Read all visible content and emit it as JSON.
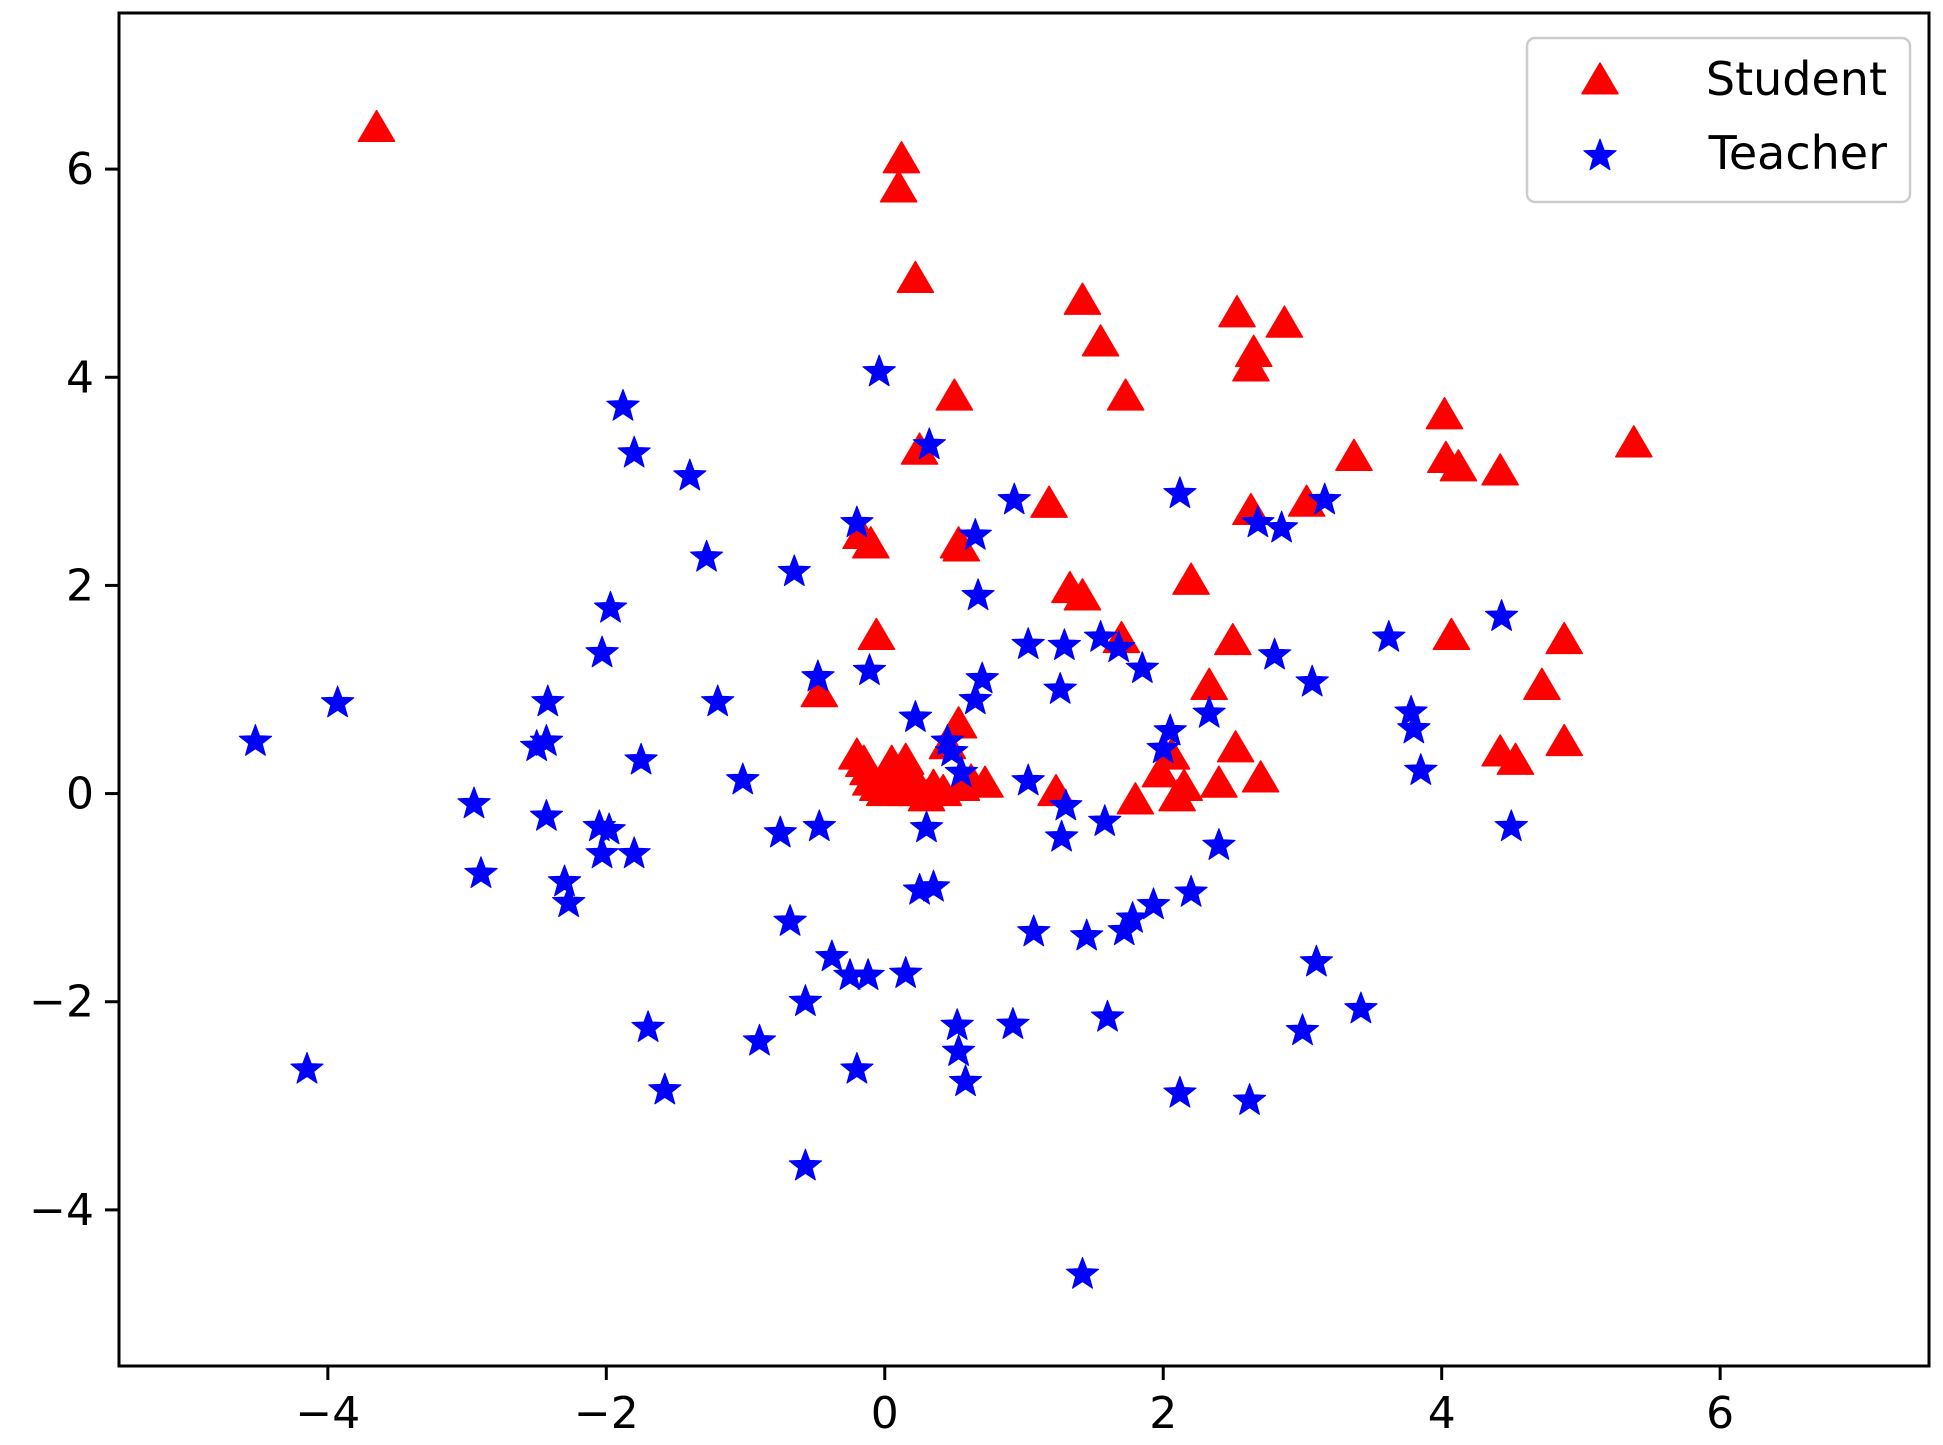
{
  "chart_data": {
    "type": "scatter",
    "title": "",
    "xlabel": "",
    "ylabel": "",
    "xlim": [
      -5.5,
      7.5
    ],
    "ylim": [
      -5.5,
      7.5
    ],
    "xticks": [
      -4,
      -2,
      0,
      2,
      4,
      6
    ],
    "yticks": [
      -4,
      -2,
      0,
      2,
      4,
      6
    ],
    "grid": false,
    "legend_position": "top-right",
    "series": [
      {
        "name": "Student",
        "marker": "triangle",
        "color": "#ff0000",
        "points": [
          [
            -3.65,
            6.38
          ],
          [
            0.12,
            6.08
          ],
          [
            0.1,
            5.8
          ],
          [
            0.22,
            4.93
          ],
          [
            1.42,
            4.72
          ],
          [
            1.55,
            4.32
          ],
          [
            2.53,
            4.6
          ],
          [
            2.87,
            4.5
          ],
          [
            2.65,
            4.22
          ],
          [
            2.63,
            4.08
          ],
          [
            0.5,
            3.8
          ],
          [
            1.73,
            3.8
          ],
          [
            4.02,
            3.62
          ],
          [
            4.03,
            3.2
          ],
          [
            4.12,
            3.12
          ],
          [
            4.42,
            3.08
          ],
          [
            3.37,
            3.22
          ],
          [
            5.38,
            3.35
          ],
          [
            0.25,
            3.28
          ],
          [
            1.18,
            2.77
          ],
          [
            3.03,
            2.78
          ],
          [
            2.63,
            2.7
          ],
          [
            -0.17,
            2.47
          ],
          [
            -0.1,
            2.38
          ],
          [
            0.53,
            2.38
          ],
          [
            0.55,
            2.35
          ],
          [
            2.2,
            2.03
          ],
          [
            1.33,
            1.95
          ],
          [
            1.42,
            1.88
          ],
          [
            -0.06,
            1.5
          ],
          [
            1.7,
            1.47
          ],
          [
            2.5,
            1.45
          ],
          [
            4.07,
            1.5
          ],
          [
            4.88,
            1.46
          ],
          [
            4.72,
            1.02
          ],
          [
            2.33,
            1.02
          ],
          [
            -0.47,
            0.95
          ],
          [
            0.53,
            0.65
          ],
          [
            2.06,
            0.35
          ],
          [
            1.98,
            0.18
          ],
          [
            2.52,
            0.42
          ],
          [
            4.42,
            0.38
          ],
          [
            4.53,
            0.3
          ],
          [
            4.88,
            0.48
          ],
          [
            2.7,
            0.13
          ],
          [
            2.4,
            0.08
          ],
          [
            2.15,
            0.05
          ],
          [
            2.1,
            -0.05
          ],
          [
            1.8,
            -0.08
          ],
          [
            1.23,
            0.0
          ],
          [
            -0.2,
            0.35
          ],
          [
            -0.15,
            0.28
          ],
          [
            -0.12,
            0.2
          ],
          [
            -0.1,
            0.1
          ],
          [
            -0.05,
            0.05
          ],
          [
            0.0,
            0.0
          ],
          [
            0.05,
            0.28
          ],
          [
            0.08,
            0.12
          ],
          [
            0.1,
            0.05
          ],
          [
            0.15,
            0.0
          ],
          [
            0.15,
            0.3
          ],
          [
            0.2,
            0.15
          ],
          [
            0.22,
            0.05
          ],
          [
            0.25,
            0.0
          ],
          [
            0.3,
            -0.05
          ],
          [
            0.35,
            0.05
          ],
          [
            0.42,
            0.0
          ],
          [
            0.45,
            0.45
          ],
          [
            0.55,
            0.05
          ],
          [
            0.62,
            0.1
          ],
          [
            0.72,
            0.08
          ]
        ]
      },
      {
        "name": "Teacher",
        "marker": "star",
        "color": "#0000ff",
        "points": [
          [
            -0.04,
            4.05
          ],
          [
            -1.88,
            3.72
          ],
          [
            -1.8,
            3.27
          ],
          [
            -1.4,
            3.05
          ],
          [
            0.32,
            3.35
          ],
          [
            -1.28,
            2.27
          ],
          [
            -0.2,
            2.6
          ],
          [
            0.65,
            2.48
          ],
          [
            0.93,
            2.82
          ],
          [
            -0.65,
            2.13
          ],
          [
            2.12,
            2.88
          ],
          [
            2.68,
            2.6
          ],
          [
            2.85,
            2.55
          ],
          [
            3.16,
            2.82
          ],
          [
            0.67,
            1.9
          ],
          [
            -1.97,
            1.78
          ],
          [
            -2.03,
            1.35
          ],
          [
            4.43,
            1.7
          ],
          [
            3.62,
            1.5
          ],
          [
            1.55,
            1.5
          ],
          [
            1.68,
            1.4
          ],
          [
            1.85,
            1.2
          ],
          [
            1.03,
            1.43
          ],
          [
            1.29,
            1.42
          ],
          [
            0.7,
            1.1
          ],
          [
            -0.11,
            1.18
          ],
          [
            -0.48,
            1.12
          ],
          [
            1.26,
            1.0
          ],
          [
            -2.42,
            0.88
          ],
          [
            -3.93,
            0.87
          ],
          [
            -1.2,
            0.88
          ],
          [
            0.65,
            0.9
          ],
          [
            3.07,
            1.07
          ],
          [
            2.8,
            1.33
          ],
          [
            0.22,
            0.73
          ],
          [
            2.33,
            0.77
          ],
          [
            2.05,
            0.6
          ],
          [
            2.0,
            0.43
          ],
          [
            3.78,
            0.78
          ],
          [
            3.8,
            0.62
          ],
          [
            3.85,
            0.22
          ],
          [
            -4.52,
            0.5
          ],
          [
            -2.5,
            0.45
          ],
          [
            -2.43,
            0.5
          ],
          [
            -1.75,
            0.32
          ],
          [
            0.45,
            0.5
          ],
          [
            0.48,
            0.4
          ],
          [
            0.55,
            0.2
          ],
          [
            -1.02,
            0.13
          ],
          [
            1.03,
            0.12
          ],
          [
            1.3,
            -0.12
          ],
          [
            -2.95,
            -0.1
          ],
          [
            -2.43,
            -0.22
          ],
          [
            -2.05,
            -0.32
          ],
          [
            -1.98,
            -0.35
          ],
          [
            -2.03,
            -0.58
          ],
          [
            -1.8,
            -0.58
          ],
          [
            -0.47,
            -0.32
          ],
          [
            -0.75,
            -0.38
          ],
          [
            0.3,
            -0.33
          ],
          [
            1.27,
            -0.42
          ],
          [
            1.58,
            -0.27
          ],
          [
            4.5,
            -0.32
          ],
          [
            2.4,
            -0.5
          ],
          [
            -2.9,
            -0.77
          ],
          [
            -2.3,
            -0.85
          ],
          [
            -2.27,
            -1.05
          ],
          [
            0.25,
            -0.93
          ],
          [
            0.35,
            -0.9
          ],
          [
            2.2,
            -0.95
          ],
          [
            1.93,
            -1.07
          ],
          [
            1.78,
            -1.2
          ],
          [
            1.72,
            -1.32
          ],
          [
            1.45,
            -1.37
          ],
          [
            1.07,
            -1.33
          ],
          [
            -0.68,
            -1.23
          ],
          [
            -0.38,
            -1.57
          ],
          [
            -0.25,
            -1.75
          ],
          [
            -0.12,
            -1.75
          ],
          [
            0.15,
            -1.73
          ],
          [
            3.1,
            -1.62
          ],
          [
            3.42,
            -2.07
          ],
          [
            -1.7,
            -2.25
          ],
          [
            -0.57,
            -2.0
          ],
          [
            -0.9,
            -2.38
          ],
          [
            0.52,
            -2.23
          ],
          [
            0.53,
            -2.48
          ],
          [
            0.58,
            -2.77
          ],
          [
            0.92,
            -2.22
          ],
          [
            1.6,
            -2.15
          ],
          [
            3.0,
            -2.28
          ],
          [
            -0.2,
            -2.65
          ],
          [
            -4.15,
            -2.65
          ],
          [
            -1.58,
            -2.85
          ],
          [
            2.12,
            -2.88
          ],
          [
            2.62,
            -2.95
          ],
          [
            -0.57,
            -3.58
          ],
          [
            1.42,
            -4.62
          ]
        ]
      }
    ]
  }
}
